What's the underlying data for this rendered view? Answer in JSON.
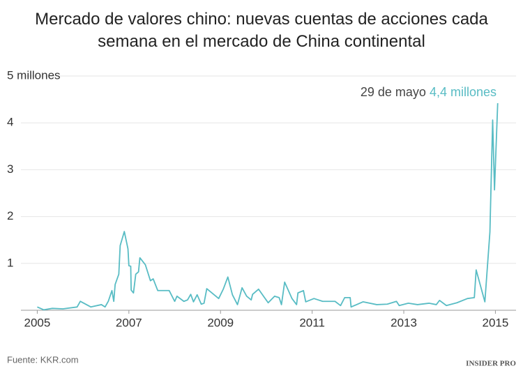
{
  "chart_data": {
    "type": "line",
    "title": "Mercado de valores chino: nuevas cuentas de acciones cada semana en el mercado de China continental",
    "annotation": {
      "date": "29 de mayo",
      "value": "4,4 millones"
    },
    "source": "Fuente: KKR.com",
    "logo": "INSIDER PRO",
    "color": "#58bcc4",
    "grid": true,
    "xlim": [
      2004.75,
      2015.45
    ],
    "xticks": [
      2005,
      2007,
      2009,
      2011,
      2013,
      2015
    ],
    "ylim": [
      0,
      5
    ],
    "yticks": [
      1,
      2,
      3,
      4,
      {
        "value": 5,
        "label": "5 millones"
      }
    ],
    "x": [
      2005.0,
      2005.14,
      2005.33,
      2005.56,
      2005.87,
      2005.94,
      2006.17,
      2006.4,
      2006.48,
      2006.55,
      2006.63,
      2006.67,
      2006.7,
      2006.78,
      2006.81,
      2006.9,
      2006.98,
      2007.0,
      2007.04,
      2007.05,
      2007.1,
      2007.15,
      2007.21,
      2007.24,
      2007.36,
      2007.47,
      2007.53,
      2007.63,
      2007.88,
      2008.0,
      2008.05,
      2008.2,
      2008.28,
      2008.35,
      2008.41,
      2008.49,
      2008.58,
      2008.64,
      2008.7,
      2008.96,
      2009.06,
      2009.16,
      2009.26,
      2009.37,
      2009.47,
      2009.57,
      2009.67,
      2009.7,
      2009.83,
      2010.04,
      2010.18,
      2010.28,
      2010.33,
      2010.4,
      2010.56,
      2010.66,
      2010.69,
      2010.81,
      2010.86,
      2011.04,
      2011.23,
      2011.5,
      2011.62,
      2011.71,
      2011.83,
      2011.85,
      2012.11,
      2012.41,
      2012.64,
      2012.84,
      2012.9,
      2013.1,
      2013.3,
      2013.55,
      2013.71,
      2013.78,
      2013.93,
      2014.16,
      2014.39,
      2014.54,
      2014.58,
      2014.77,
      2014.88,
      2014.94,
      2014.98,
      2015.05
    ],
    "values": [
      0.07,
      0.01,
      0.04,
      0.03,
      0.07,
      0.19,
      0.07,
      0.12,
      0.07,
      0.19,
      0.42,
      0.19,
      0.55,
      0.77,
      1.38,
      1.68,
      1.31,
      0.95,
      0.94,
      0.43,
      0.37,
      0.77,
      0.82,
      1.12,
      0.97,
      0.63,
      0.67,
      0.42,
      0.42,
      0.19,
      0.3,
      0.19,
      0.22,
      0.34,
      0.18,
      0.33,
      0.13,
      0.15,
      0.46,
      0.25,
      0.45,
      0.71,
      0.33,
      0.12,
      0.48,
      0.3,
      0.22,
      0.34,
      0.45,
      0.16,
      0.3,
      0.27,
      0.12,
      0.6,
      0.25,
      0.12,
      0.37,
      0.42,
      0.18,
      0.25,
      0.19,
      0.19,
      0.1,
      0.27,
      0.27,
      0.07,
      0.18,
      0.12,
      0.13,
      0.19,
      0.1,
      0.15,
      0.12,
      0.15,
      0.12,
      0.21,
      0.1,
      0.16,
      0.25,
      0.27,
      0.86,
      0.18,
      1.67,
      4.06,
      2.57,
      4.42
    ]
  }
}
